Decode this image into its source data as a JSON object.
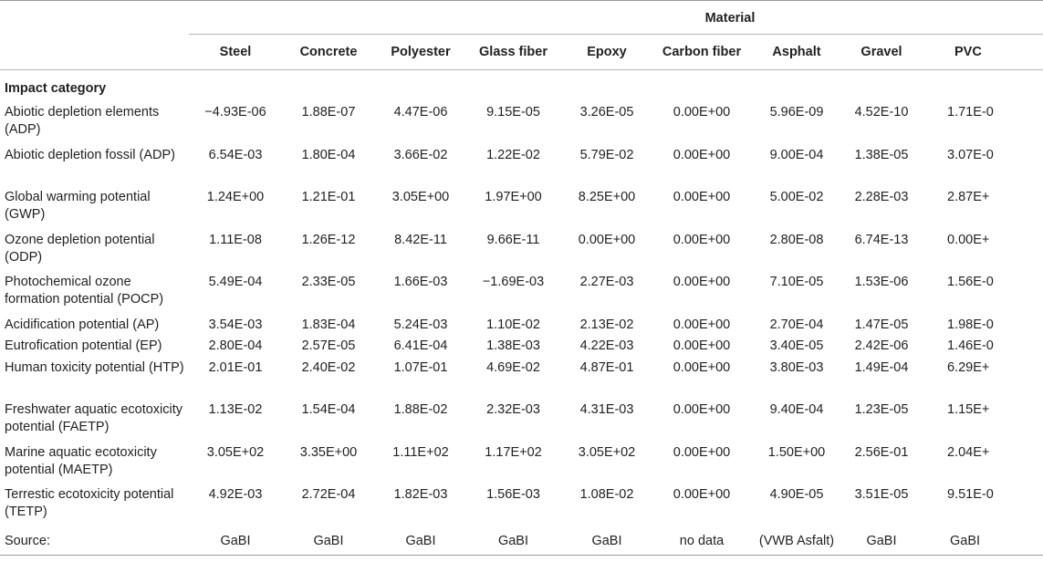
{
  "table": {
    "group_header": "Material",
    "section_header": "Impact category",
    "materials": [
      "Steel",
      "Concrete",
      "Polyester",
      "Glass fiber",
      "Epoxy",
      "Carbon fiber",
      "Asphalt",
      "Gravel",
      "PVC"
    ],
    "rows": [
      {
        "category": "Abiotic depletion elements (ADP)",
        "values": [
          "−4.93E-06",
          "1.88E-07",
          "4.47E-06",
          "9.15E-05",
          "3.26E-05",
          "0.00E+00",
          "5.96E-09",
          "4.52E-10",
          "1.71E-0"
        ]
      },
      {
        "category": "Abiotic depletion fossil (ADP)",
        "values": [
          "6.54E-03",
          "1.80E-04",
          "3.66E-02",
          "1.22E-02",
          "5.79E-02",
          "0.00E+00",
          "9.00E-04",
          "1.38E-05",
          "3.07E-0"
        ]
      },
      {
        "category": "Global warming potential (GWP)",
        "values": [
          "1.24E+00",
          "1.21E-01",
          "3.05E+00",
          "1.97E+00",
          "8.25E+00",
          "0.00E+00",
          "5.00E-02",
          "2.28E-03",
          "2.87E+"
        ]
      },
      {
        "category": "Ozone depletion potential (ODP)",
        "values": [
          "1.11E-08",
          "1.26E-12",
          "8.42E-11",
          "9.66E-11",
          "0.00E+00",
          "0.00E+00",
          "2.80E-08",
          "6.74E-13",
          "0.00E+"
        ]
      },
      {
        "category": "Photochemical ozone formation potential (POCP)",
        "values": [
          "5.49E-04",
          "2.33E-05",
          "1.66E-03",
          "−1.69E-03",
          "2.27E-03",
          "0.00E+00",
          "7.10E-05",
          "1.53E-06",
          "1.56E-0"
        ]
      },
      {
        "category": "Acidification potential (AP)",
        "values": [
          "3.54E-03",
          "1.83E-04",
          "5.24E-03",
          "1.10E-02",
          "2.13E-02",
          "0.00E+00",
          "2.70E-04",
          "1.47E-05",
          "1.98E-0"
        ]
      },
      {
        "category": "Eutrofication potential (EP)",
        "values": [
          "2.80E-04",
          "2.57E-05",
          "6.41E-04",
          "1.38E-03",
          "4.22E-03",
          "0.00E+00",
          "3.40E-05",
          "2.42E-06",
          "1.46E-0"
        ]
      },
      {
        "category": "Human toxicity potential (HTP)",
        "values": [
          "2.01E-01",
          "2.40E-02",
          "1.07E-01",
          "4.69E-02",
          "4.87E-01",
          "0.00E+00",
          "3.80E-03",
          "1.49E-04",
          "6.29E+"
        ]
      },
      {
        "category": "Freshwater aquatic ecotoxicity potential (FAETP)",
        "values": [
          "1.13E-02",
          "1.54E-04",
          "1.88E-02",
          "2.32E-03",
          "4.31E-03",
          "0.00E+00",
          "9.40E-04",
          "1.23E-05",
          "1.15E+"
        ]
      },
      {
        "category": "Marine aquatic ecotoxicity potential (MAETP)",
        "values": [
          "3.05E+02",
          "3.35E+00",
          "1.11E+02",
          "1.17E+02",
          "3.05E+02",
          "0.00E+00",
          "1.50E+00",
          "2.56E-01",
          "2.04E+"
        ]
      },
      {
        "category": "Terrestic ecotoxicity potential (TETP)",
        "values": [
          "4.92E-03",
          "2.72E-04",
          "1.82E-03",
          "1.56E-03",
          "1.08E-02",
          "0.00E+00",
          "4.90E-05",
          "3.51E-05",
          "9.51E-0"
        ]
      }
    ],
    "source": {
      "label": "Source:",
      "values": [
        "GaBI",
        "GaBI",
        "GaBI",
        "GaBI",
        "GaBI",
        "no data",
        "(VWB Asfalt)",
        "GaBI",
        "GaBI"
      ]
    }
  }
}
